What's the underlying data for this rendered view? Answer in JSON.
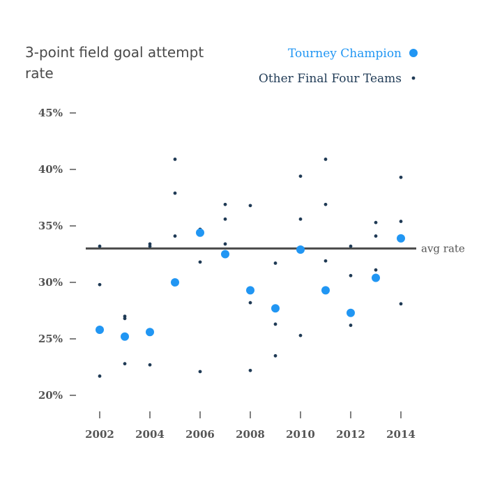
{
  "chart_data": {
    "type": "scatter",
    "title": "3-point field goal attempt rate",
    "x": [
      2002,
      2003,
      2004,
      2005,
      2006,
      2007,
      2008,
      2009,
      2010,
      2011,
      2012,
      2013,
      2014
    ],
    "x_tick_labels": [
      "2002",
      "2004",
      "2006",
      "2008",
      "2010",
      "2012",
      "2014"
    ],
    "y_tick_labels": [
      "20%",
      "25%",
      "30%",
      "35%",
      "40%",
      "45%"
    ],
    "ylim": [
      20,
      45
    ],
    "grid": false,
    "legend_position": "top-right",
    "series": [
      {
        "name": "Tourney Champion",
        "color": "#2196f3",
        "points": [
          [
            2002,
            25.8
          ],
          [
            2003,
            25.2
          ],
          [
            2004,
            25.6
          ],
          [
            2005,
            30.0
          ],
          [
            2006,
            34.4
          ],
          [
            2007,
            32.5
          ],
          [
            2008,
            29.3
          ],
          [
            2009,
            27.7
          ],
          [
            2010,
            32.9
          ],
          [
            2011,
            29.3
          ],
          [
            2012,
            27.3
          ],
          [
            2013,
            30.4
          ],
          [
            2014,
            33.9
          ]
        ]
      },
      {
        "name": "Other Final Four Teams",
        "color": "#1f3a55",
        "points": [
          [
            2002,
            33.2
          ],
          [
            2002,
            29.8
          ],
          [
            2002,
            21.7
          ],
          [
            2003,
            27.0
          ],
          [
            2003,
            26.8
          ],
          [
            2003,
            22.8
          ],
          [
            2004,
            33.4
          ],
          [
            2004,
            33.2
          ],
          [
            2004,
            22.7
          ],
          [
            2005,
            40.9
          ],
          [
            2005,
            37.9
          ],
          [
            2005,
            34.1
          ],
          [
            2006,
            34.7
          ],
          [
            2006,
            31.8
          ],
          [
            2006,
            22.1
          ],
          [
            2007,
            36.9
          ],
          [
            2007,
            35.6
          ],
          [
            2007,
            33.4
          ],
          [
            2008,
            36.8
          ],
          [
            2008,
            28.2
          ],
          [
            2008,
            22.2
          ],
          [
            2009,
            31.7
          ],
          [
            2009,
            26.3
          ],
          [
            2009,
            23.5
          ],
          [
            2010,
            39.4
          ],
          [
            2010,
            35.6
          ],
          [
            2010,
            25.3
          ],
          [
            2011,
            40.9
          ],
          [
            2011,
            36.9
          ],
          [
            2011,
            31.9
          ],
          [
            2012,
            33.2
          ],
          [
            2012,
            30.6
          ],
          [
            2012,
            26.2
          ],
          [
            2013,
            35.3
          ],
          [
            2013,
            34.1
          ],
          [
            2013,
            31.1
          ],
          [
            2014,
            39.3
          ],
          [
            2014,
            35.4
          ],
          [
            2014,
            28.1
          ]
        ]
      }
    ],
    "reference_line": {
      "label": "avg rate",
      "value": 33.0,
      "color": "#4a4a4a"
    }
  }
}
